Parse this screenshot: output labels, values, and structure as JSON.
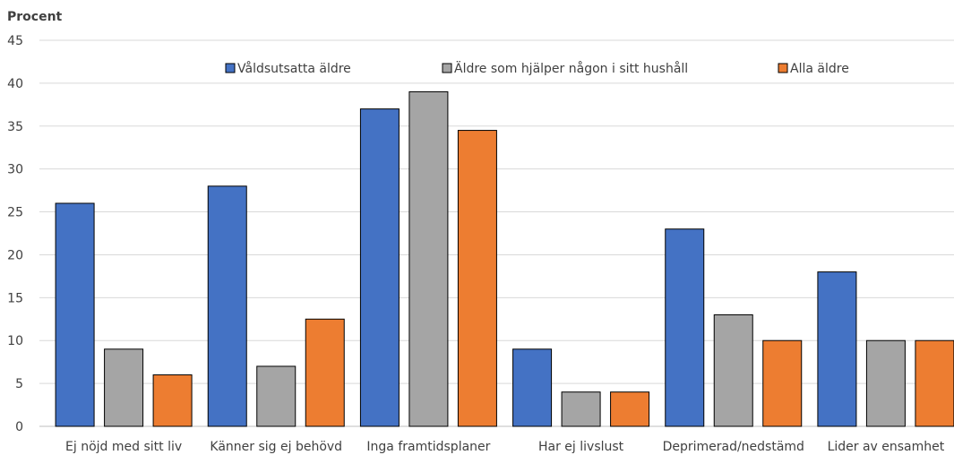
{
  "chart_data": {
    "type": "bar",
    "title": "",
    "ylabel": "Procent",
    "xlabel": "",
    "ylim": [
      0,
      45
    ],
    "yticks": [
      0,
      5,
      10,
      15,
      20,
      25,
      30,
      35,
      40,
      45
    ],
    "grid": true,
    "legend_position": "top",
    "categories": [
      "Ej nöjd med sitt liv",
      "Känner sig ej behövd",
      "Inga framtidsplaner",
      "Har ej livslust",
      "Deprimerad/nedstämd",
      "Lider av ensamhet"
    ],
    "series": [
      {
        "name": "Våldsutsatta äldre",
        "color": "#4472C4",
        "values": [
          26,
          28,
          37,
          9,
          23,
          18
        ]
      },
      {
        "name": "Äldre som hjälper någon i sitt hushåll",
        "color": "#A5A5A5",
        "values": [
          9,
          7,
          39,
          4,
          13,
          10
        ]
      },
      {
        "name": "Alla äldre",
        "color": "#ED7D31",
        "values": [
          6,
          12.5,
          34.5,
          4,
          10,
          10
        ]
      }
    ]
  }
}
